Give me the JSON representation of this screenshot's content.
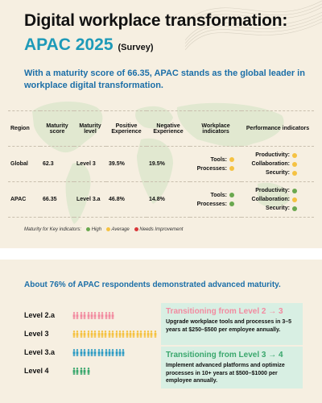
{
  "header": {
    "title_line1": "Digital workplace transformation:",
    "title_line2": "APAC 2025",
    "survey": "(Survey)",
    "lead": "With a maturity score of 66.35, APAC stands as the global leader in workplace digital transformation."
  },
  "table": {
    "headers": [
      "Region",
      "Maturity score",
      "Maturity level",
      "Positive Experience",
      "Negative Experience",
      "Workplace indicators",
      "Performance indicators"
    ],
    "rows": [
      {
        "region": "Global",
        "score": "62.3",
        "level": "Level 3",
        "positive": "39.5%",
        "negative": "19.5%",
        "workplace": [
          {
            "label": "Tools:",
            "status": "average"
          },
          {
            "label": "Processes:",
            "status": "average"
          }
        ],
        "performance": [
          {
            "label": "Productivity:",
            "status": "average"
          },
          {
            "label": "Collaboration:",
            "status": "average"
          },
          {
            "label": "Security:",
            "status": "average"
          }
        ]
      },
      {
        "region": "APAC",
        "score": "66.35",
        "level": "Level 3.a",
        "positive": "46.8%",
        "negative": "14.8%",
        "workplace": [
          {
            "label": "Tools:",
            "status": "high"
          },
          {
            "label": "Processes:",
            "status": "high"
          }
        ],
        "performance": [
          {
            "label": "Productivity:",
            "status": "high"
          },
          {
            "label": "Collaboration:",
            "status": "average"
          },
          {
            "label": "Security:",
            "status": "high"
          }
        ]
      }
    ]
  },
  "legend": {
    "lead": "Maturity for Key indicators:",
    "items": [
      {
        "label": "High",
        "color": "#6aa84f"
      },
      {
        "label": "Average",
        "color": "#f5c242"
      },
      {
        "label": "Needs Improvement",
        "color": "#d9383a"
      }
    ]
  },
  "status_colors": {
    "high": "#6aa84f",
    "average": "#f5c242",
    "needs_improvement": "#d9383a"
  },
  "maturity": {
    "title": "About 76% of APAC respondents demonstrated advanced maturity.",
    "levels": [
      {
        "label": "Level 2.a",
        "pct": "21%",
        "share": 21,
        "color": "#f28ba0"
      },
      {
        "label": "Level 3",
        "pct": "41%",
        "share": 41,
        "color": "#f5c242"
      },
      {
        "label": "Level 3.a",
        "pct": "26%",
        "share": 26,
        "color": "#2e9cc4"
      },
      {
        "label": "Level 4",
        "pct": "8%",
        "share": 8,
        "color": "#3aa76d"
      }
    ]
  },
  "cards": [
    {
      "heading": "Transitioning from Level 2 → 3",
      "color": "#f28ba0",
      "text": "Upgrade workplace tools and processes in 3–5 years at $250–$500 per employee annually."
    },
    {
      "heading": "Transitioning from  Level 3 → 4",
      "color": "#3aa76d",
      "text": "Implement advanced platforms and optimize processes in 10+ years at $500–$1000 per employee annually."
    }
  ]
}
